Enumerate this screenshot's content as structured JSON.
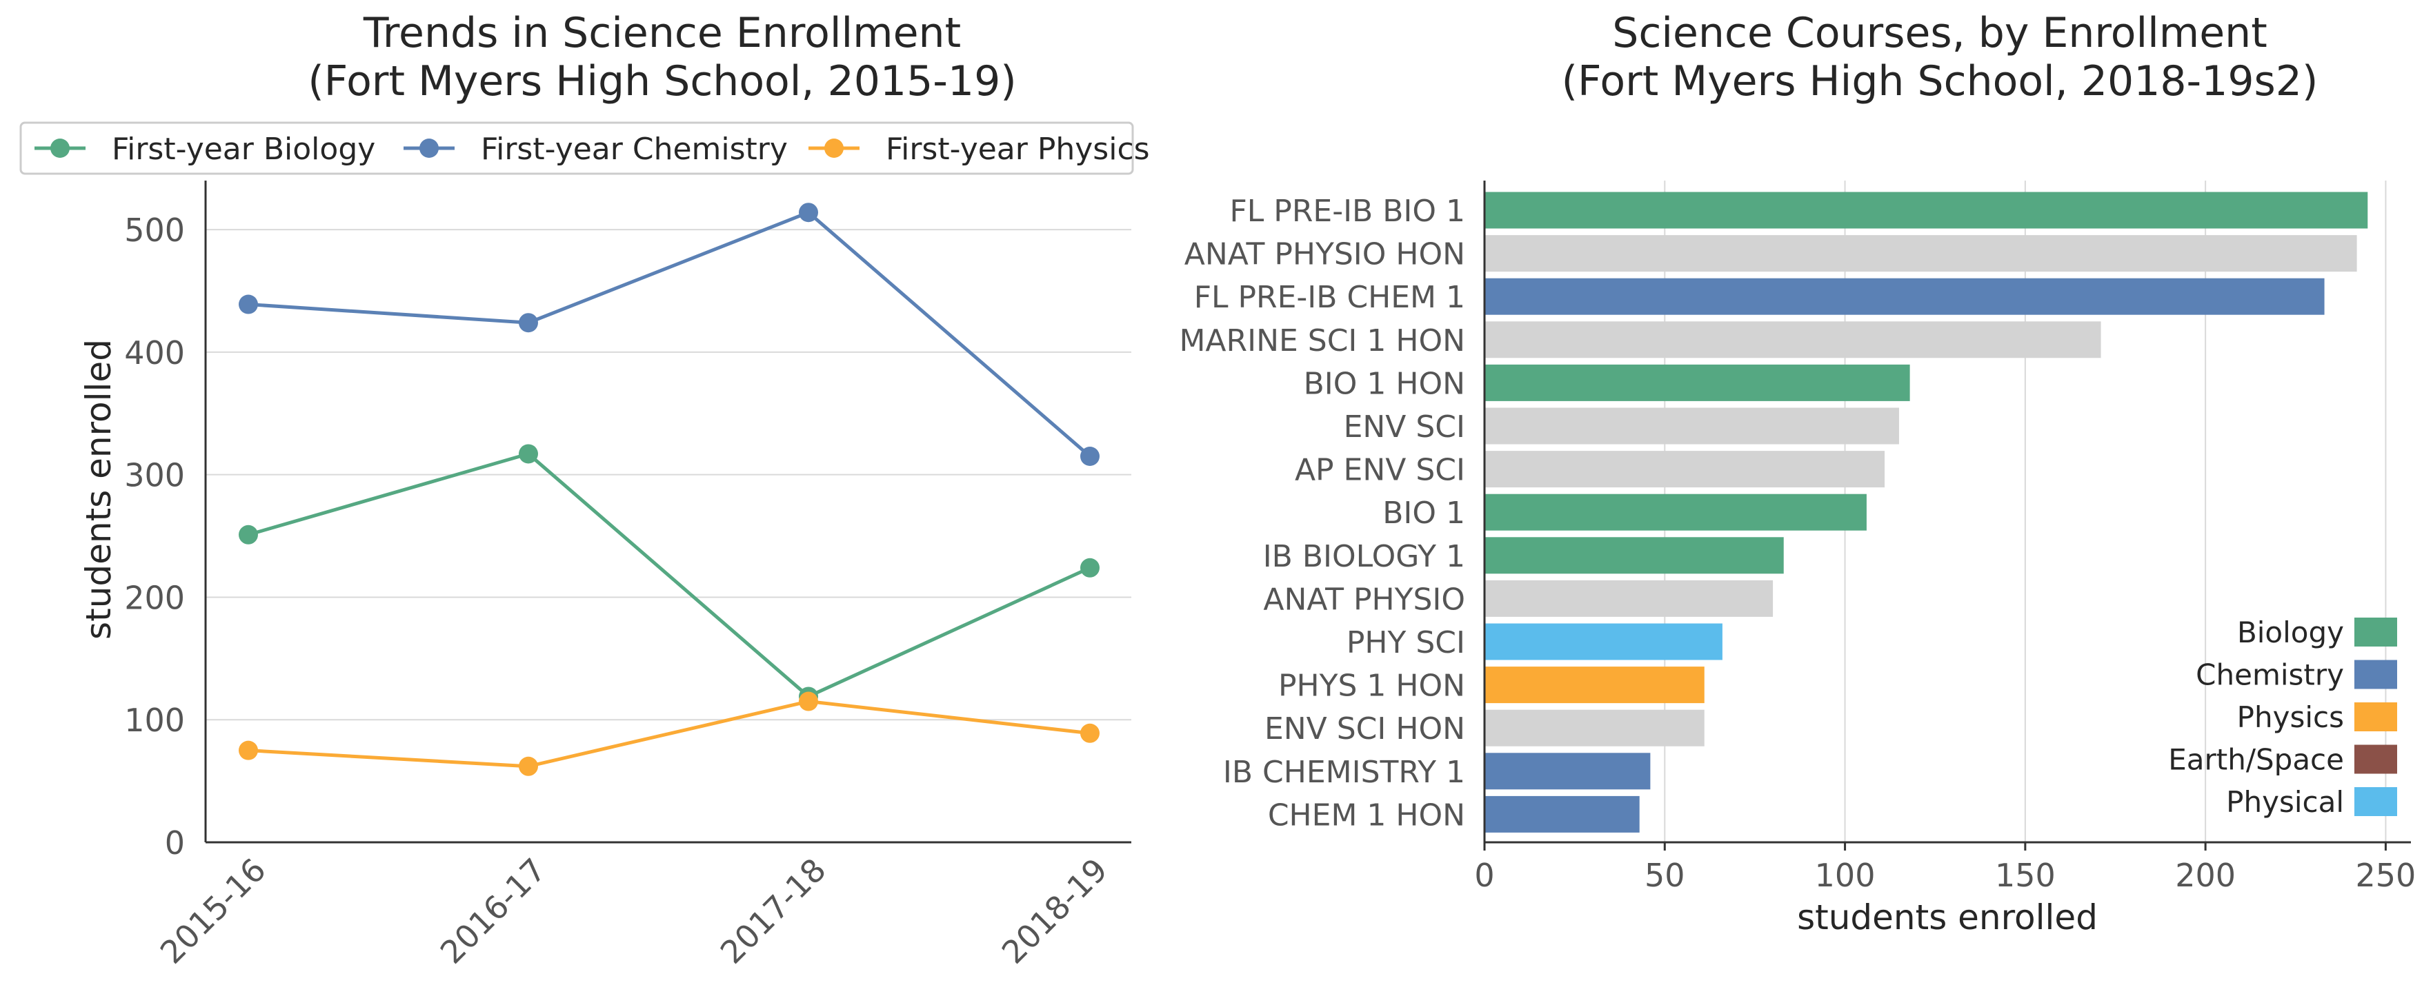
{
  "colors": {
    "biology": "#55a882",
    "chemistry": "#5b81b5",
    "physics": "#fbaa35",
    "earth_space": "#8b5148",
    "physical": "#5bbcec",
    "other": "#d3d3d3",
    "grid": "#d9d9d9",
    "axis": "#333333",
    "text": "#262626",
    "tick_text": "#555555"
  },
  "chart_data": [
    {
      "type": "line",
      "title_line1": "Trends in Science Enrollment",
      "title_line2": "(Fort Myers High School, 2015-19)",
      "xlabel": "",
      "ylabel": "students enrolled",
      "categories": [
        "2015-16",
        "2016-17",
        "2017-18",
        "2018-19"
      ],
      "ylim": [
        0,
        540
      ],
      "yticks": [
        0,
        100,
        200,
        300,
        400,
        500
      ],
      "grid": "horizontal",
      "legend_position": "top",
      "series": [
        {
          "name": "First-year Biology",
          "color_key": "biology",
          "values": [
            251,
            317,
            119,
            224
          ]
        },
        {
          "name": "First-year Chemistry",
          "color_key": "chemistry",
          "values": [
            439,
            424,
            514,
            315
          ]
        },
        {
          "name": "First-year Physics",
          "color_key": "physics",
          "values": [
            75,
            62,
            115,
            89
          ]
        }
      ]
    },
    {
      "type": "bar",
      "orientation": "horizontal",
      "title_line1": "Science Courses, by Enrollment",
      "title_line2": "(Fort Myers High School, 2018-19s2)",
      "xlabel": "students enrolled",
      "ylabel": "",
      "xlim": [
        0,
        257
      ],
      "xticks": [
        0,
        50,
        100,
        150,
        200,
        250
      ],
      "grid": "vertical",
      "legend_position": "lower-right",
      "categories": [
        "FL PRE-IB BIO 1",
        "ANAT PHYSIO HON",
        "FL PRE-IB CHEM 1",
        "MARINE SCI 1 HON",
        "BIO 1 HON",
        "ENV SCI",
        "AP ENV SCI",
        "BIO 1",
        "IB BIOLOGY 1",
        "ANAT PHYSIO",
        "PHY SCI",
        "PHYS 1 HON",
        "ENV SCI HON",
        "IB CHEMISTRY 1",
        "CHEM 1 HON"
      ],
      "values": [
        245,
        242,
        233,
        171,
        118,
        115,
        111,
        106,
        83,
        80,
        66,
        61,
        61,
        46,
        43
      ],
      "subjects": [
        "biology",
        "other",
        "chemistry",
        "other",
        "biology",
        "other",
        "other",
        "biology",
        "biology",
        "other",
        "physical",
        "physics",
        "other",
        "chemistry",
        "chemistry"
      ],
      "legend": [
        {
          "label": "Biology",
          "color_key": "biology"
        },
        {
          "label": "Chemistry",
          "color_key": "chemistry"
        },
        {
          "label": "Physics",
          "color_key": "physics"
        },
        {
          "label": "Earth/Space",
          "color_key": "earth_space"
        },
        {
          "label": "Physical",
          "color_key": "physical"
        }
      ]
    }
  ]
}
